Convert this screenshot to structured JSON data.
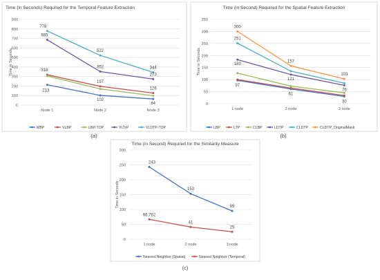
{
  "chart_data": [
    {
      "type": "line",
      "caption": "(a)",
      "title": "Time (in Seconds) Required for the Temporal Feature Extraction",
      "ylabel": "Time in Seconds",
      "xlabel": "",
      "categories": [
        "Node 1",
        "Node 2",
        "Node 3"
      ],
      "ylim": [
        0,
        900
      ],
      "yticks": [
        0,
        100,
        200,
        300,
        400,
        500,
        600,
        700,
        800,
        900
      ],
      "grid": true,
      "legend": "bottom",
      "series": [
        {
          "name": "MBP",
          "color": "#4472c4",
          "values": [
            213,
            102,
            64
          ]
        },
        {
          "name": "VLBP",
          "color": "#c0504d",
          "values": [
            318,
            197,
            126
          ]
        },
        {
          "name": "LBP-TOP",
          "color": "#9bbb59",
          "values": [
            305,
            170,
            98
          ]
        },
        {
          "name": "VLTrP",
          "color": "#7055a0",
          "values": [
            685,
            352,
            273
          ]
        },
        {
          "name": "VLDTP-TOP",
          "color": "#4bacc6",
          "values": [
            778,
            522,
            344
          ]
        }
      ],
      "data_labels": [
        {
          "series": 0,
          "index": 0,
          "text": "213"
        },
        {
          "series": 0,
          "index": 1,
          "text": "102"
        },
        {
          "series": 0,
          "index": 2,
          "text": "64"
        },
        {
          "series": 1,
          "index": 0,
          "text": "318"
        },
        {
          "series": 1,
          "index": 1,
          "text": "197"
        },
        {
          "series": 1,
          "index": 2,
          "text": "126"
        },
        {
          "series": 3,
          "index": 0,
          "text": "685"
        },
        {
          "series": 3,
          "index": 1,
          "text": "352"
        },
        {
          "series": 3,
          "index": 2,
          "text": "273"
        },
        {
          "series": 4,
          "index": 0,
          "text": "778"
        },
        {
          "series": 4,
          "index": 1,
          "text": "522"
        },
        {
          "series": 4,
          "index": 2,
          "text": "344"
        }
      ]
    },
    {
      "type": "line",
      "caption": "(b)",
      "title": "Time (in Second) Required for the Spatial  Feature Extraction",
      "ylabel": "Time in Seconds",
      "xlabel": "",
      "categories": [
        "1 node",
        "2 node",
        "3 node"
      ],
      "ylim": [
        0,
        350
      ],
      "yticks": [
        0,
        50,
        100,
        150,
        200,
        250,
        300,
        350
      ],
      "grid": true,
      "legend": "bottom",
      "series": [
        {
          "name": "LBP",
          "color": "#4472c4",
          "values": [
            97,
            61,
            30
          ]
        },
        {
          "name": "LTP",
          "color": "#c0504d",
          "values": [
            100,
            65,
            34
          ]
        },
        {
          "name": "CLBP",
          "color": "#9bbb59",
          "values": [
            127,
            73,
            45
          ]
        },
        {
          "name": "LDTP",
          "color": "#7055a0",
          "values": [
            183,
            121,
            76
          ]
        },
        {
          "name": "CLDTP",
          "color": "#4bacc6",
          "values": [
            251,
            135,
            85
          ]
        },
        {
          "name": "CLDTP_OriginalMask",
          "color": "#f79646",
          "values": [
            300,
            157,
            103
          ]
        }
      ],
      "data_labels": [
        {
          "series": 5,
          "index": 0,
          "text": "300"
        },
        {
          "series": 5,
          "index": 1,
          "text": "157"
        },
        {
          "series": 5,
          "index": 2,
          "text": "103"
        },
        {
          "series": 4,
          "index": 0,
          "text": "251"
        },
        {
          "series": 3,
          "index": 0,
          "text": "183"
        },
        {
          "series": 3,
          "index": 1,
          "text": "121"
        },
        {
          "series": 3,
          "index": 2,
          "text": "76"
        },
        {
          "series": 0,
          "index": 0,
          "text": "97"
        },
        {
          "series": 0,
          "index": 1,
          "text": "61"
        },
        {
          "series": 0,
          "index": 2,
          "text": "30"
        }
      ]
    },
    {
      "type": "line",
      "caption": "(c)",
      "title": "Time (in Second) Required for the Similarity Measure",
      "ylabel": "Time in Seconds",
      "xlabel": "",
      "categories": [
        "1 node",
        "2 node",
        "3 node"
      ],
      "ylim": [
        0,
        300
      ],
      "yticks": [
        0,
        50,
        100,
        150,
        200,
        250,
        300
      ],
      "grid": true,
      "legend": "bottom",
      "series": [
        {
          "name": "Nearest Neighbor (Spatial)",
          "color": "#4472c4",
          "values": [
            243,
            153,
            95
          ]
        },
        {
          "name": "Nearest Neighbor (Temporal)",
          "color": "#c0504d",
          "values": [
            66.762,
            41,
            25
          ]
        }
      ],
      "data_labels": [
        {
          "series": 0,
          "index": 0,
          "text": "243"
        },
        {
          "series": 0,
          "index": 1,
          "text": "153"
        },
        {
          "series": 0,
          "index": 2,
          "text": "95"
        },
        {
          "series": 1,
          "index": 0,
          "text": "66.762"
        },
        {
          "series": 1,
          "index": 1,
          "text": "41"
        },
        {
          "series": 1,
          "index": 2,
          "text": "25"
        }
      ]
    }
  ]
}
